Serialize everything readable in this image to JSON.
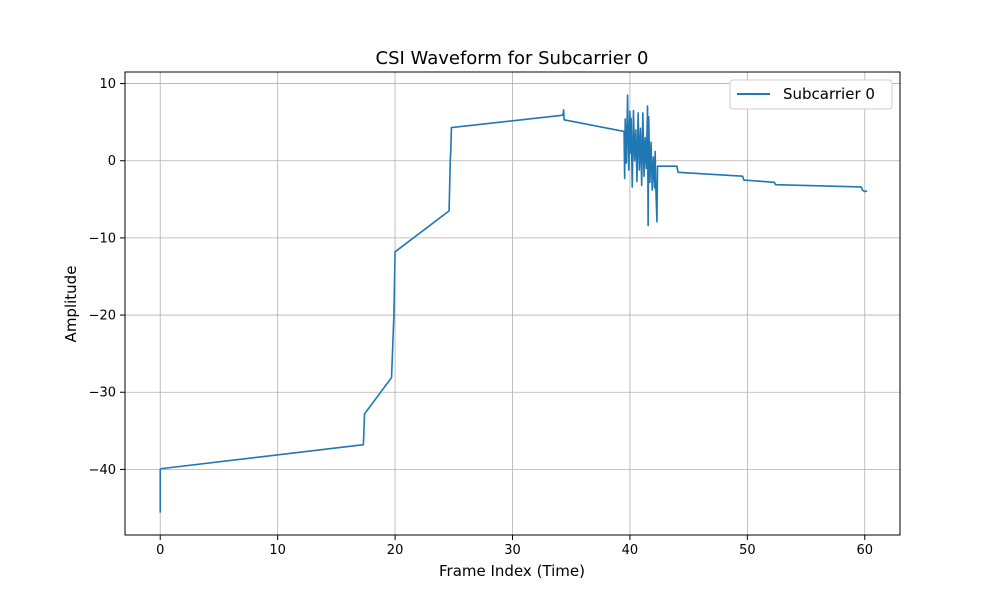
{
  "chart_data": {
    "type": "line",
    "title": "CSI Waveform for Subcarrier 0",
    "xlabel": "Frame Index (Time)",
    "ylabel": "Amplitude",
    "xlim": [
      -3,
      63
    ],
    "ylim": [
      -48.5,
      11.5
    ],
    "xticks": [
      0,
      10,
      20,
      30,
      40,
      50,
      60
    ],
    "yticks": [
      -40,
      -30,
      -20,
      -10,
      0,
      10
    ],
    "grid": true,
    "legend_position": "top-right",
    "series": [
      {
        "name": "Subcarrier 0",
        "color": "#1f77b4",
        "points": [
          [
            0.0,
            -45.6
          ],
          [
            0.0,
            -40.0
          ],
          [
            0.1,
            -39.9
          ],
          [
            17.3,
            -36.8
          ],
          [
            17.4,
            -32.8
          ],
          [
            19.7,
            -28.1
          ],
          [
            19.8,
            -24.0
          ],
          [
            19.9,
            -20.0
          ],
          [
            20.0,
            -11.8
          ],
          [
            24.6,
            -6.5
          ],
          [
            24.7,
            0.0
          ],
          [
            24.75,
            1.5
          ],
          [
            24.8,
            4.3
          ],
          [
            34.3,
            5.9
          ],
          [
            34.35,
            6.6
          ],
          [
            34.4,
            5.3
          ],
          [
            39.5,
            3.8
          ],
          [
            39.55,
            -2.3
          ],
          [
            39.6,
            5.4
          ],
          [
            39.7,
            -0.3
          ],
          [
            39.8,
            8.5
          ],
          [
            39.9,
            -1.2
          ],
          [
            40.0,
            6.4
          ],
          [
            40.05,
            1.0
          ],
          [
            40.1,
            5.5
          ],
          [
            40.2,
            -3.4
          ],
          [
            40.3,
            6.5
          ],
          [
            40.4,
            0.0
          ],
          [
            40.5,
            4.0
          ],
          [
            40.6,
            -2.7
          ],
          [
            40.7,
            6.2
          ],
          [
            40.8,
            -1.2
          ],
          [
            40.9,
            4.2
          ],
          [
            41.0,
            -3.2
          ],
          [
            41.1,
            6.2
          ],
          [
            41.2,
            -2.0
          ],
          [
            41.3,
            3.0
          ],
          [
            41.4,
            -1.0
          ],
          [
            41.5,
            7.1
          ],
          [
            41.55,
            -8.4
          ],
          [
            41.6,
            5.7
          ],
          [
            41.7,
            -2.8
          ],
          [
            41.8,
            2.4
          ],
          [
            41.9,
            -3.8
          ],
          [
            42.0,
            0.5
          ],
          [
            42.1,
            -3.5
          ],
          [
            42.15,
            1.2
          ],
          [
            42.2,
            -3.3
          ],
          [
            42.3,
            -7.9
          ],
          [
            42.35,
            -0.7
          ],
          [
            44.0,
            -0.7
          ],
          [
            44.1,
            -1.5
          ],
          [
            49.6,
            -2.0
          ],
          [
            49.7,
            -2.5
          ],
          [
            52.3,
            -2.8
          ],
          [
            52.4,
            -3.1
          ],
          [
            59.7,
            -3.4
          ],
          [
            59.8,
            -3.8
          ],
          [
            60.0,
            -4.0
          ],
          [
            60.2,
            -3.9
          ]
        ]
      }
    ]
  }
}
